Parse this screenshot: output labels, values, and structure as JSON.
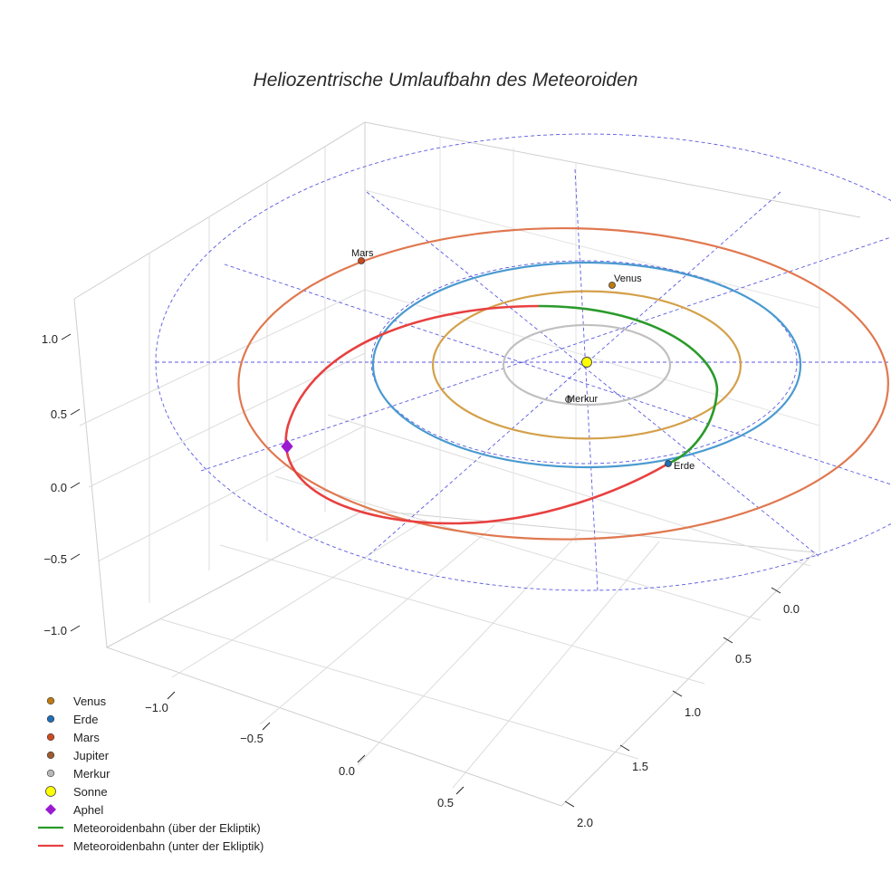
{
  "chart_data": {
    "type": "line",
    "title": "Heliozentrische Umlaufbahn des Meteoroiden",
    "axes": {
      "x": {
        "ticks": [
          -1.0,
          -0.5,
          0.0,
          0.5
        ],
        "tick_labels": [
          "−1.0",
          "−0.5",
          "0.0",
          "0.5"
        ],
        "range": [
          -1.2,
          0.8
        ]
      },
      "y": {
        "ticks": [
          0.0,
          0.5,
          1.0,
          1.5,
          2.0
        ],
        "tick_labels": [
          "0.0",
          "0.5",
          "1.0",
          "1.5",
          "2.0"
        ],
        "range": [
          -0.2,
          2.1
        ]
      },
      "z": {
        "ticks": [
          -1.0,
          -0.5,
          0.0,
          0.5,
          1.0
        ],
        "tick_labels": [
          "−1.0",
          "−0.5",
          "0.0",
          "0.5",
          "1.0"
        ],
        "range": [
          -1.2,
          1.3
        ]
      }
    },
    "grid": true,
    "legend_placement": "bottom-left",
    "planets": [
      {
        "name": "Venus",
        "label": "Venus",
        "color": "#d4a04a",
        "marker_color": "#c07a10",
        "orbit_radius": 0.72
      },
      {
        "name": "Erde",
        "label": "Erde",
        "color": "#4a9ad0",
        "marker_color": "#1f6fb4",
        "orbit_radius": 1.0
      },
      {
        "name": "Mars",
        "label": "Mars",
        "color": "#e07850",
        "marker_color": "#cc4a1e",
        "orbit_radius": 1.52
      },
      {
        "name": "Merkur",
        "label": "Merkur",
        "color": "#c0c0c0",
        "marker_color": "#b8b8b8",
        "orbit_radius": 0.39
      }
    ],
    "meteoroid_orbit": {
      "perihelion_au": 0.98,
      "aphelion_au": 1.62,
      "above_ecliptic_color": "#2a9a2a",
      "below_ecliptic_color": "#e84040"
    },
    "legend": [
      {
        "label": "Venus",
        "kind": "dot",
        "color": "#c07a10"
      },
      {
        "label": "Erde",
        "kind": "dot",
        "color": "#1f6fb4"
      },
      {
        "label": "Mars",
        "kind": "dot",
        "color": "#cc4a1e"
      },
      {
        "label": "Jupiter",
        "kind": "dot",
        "color": "#a05a30"
      },
      {
        "label": "Merkur",
        "kind": "dot",
        "color": "#b8b8b8"
      },
      {
        "label": "Sonne",
        "kind": "sun",
        "color": "#ffff00"
      },
      {
        "label": "Aphel",
        "kind": "diamond",
        "color": "#9a1ad0"
      },
      {
        "label": "Meteoroidenbahn (über der Ekliptik)",
        "kind": "line",
        "color": "#2a9a2a"
      },
      {
        "label": "Meteoroidenbahn (unter der Ekliptik)",
        "kind": "line",
        "color": "#e84040"
      }
    ]
  }
}
